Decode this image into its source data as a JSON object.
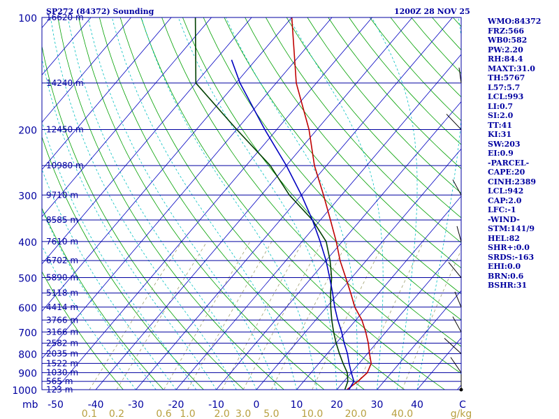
{
  "header": {
    "title": "SP272 (84372) Sounding",
    "time": "1200Z 28 NOV 25"
  },
  "chart_data": {
    "type": "skew-t log-p",
    "pressure_levels": [
      {
        "p": 100,
        "height": "16620 m"
      },
      {
        "p": 150,
        "height": "14240 m"
      },
      {
        "p": 200,
        "height": "12450 m"
      },
      {
        "p": 250,
        "height": "10980 m"
      },
      {
        "p": 300,
        "height": "9710 m"
      },
      {
        "p": 350,
        "height": "8585 m"
      },
      {
        "p": 400,
        "height": "7610 m"
      },
      {
        "p": 450,
        "height": "6702 m"
      },
      {
        "p": 500,
        "height": "5890 m"
      },
      {
        "p": 550,
        "height": "5118 m"
      },
      {
        "p": 600,
        "height": "4414 m"
      },
      {
        "p": 650,
        "height": "3766 m"
      },
      {
        "p": 700,
        "height": "3166 m"
      },
      {
        "p": 750,
        "height": "2582 m"
      },
      {
        "p": 800,
        "height": "2035 m"
      },
      {
        "p": 850,
        "height": "1522 m"
      },
      {
        "p": 900,
        "height": "1030 m"
      },
      {
        "p": 950,
        "height": "565 m"
      },
      {
        "p": 1000,
        "height": "123 m"
      }
    ],
    "pressure_axis_labels": [
      "100",
      "200",
      "300",
      "400",
      "500",
      "600",
      "700",
      "800",
      "900",
      "1000"
    ],
    "pressure_unit": "mb",
    "temperature_ticks": [
      "-50",
      "-40",
      "-30",
      "-20",
      "-10",
      "0",
      "10",
      "20",
      "30",
      "40"
    ],
    "temperature_unit": "C",
    "mixing_ratio_ticks": [
      "0.1",
      "0.2",
      "0.6",
      "1.0",
      "2.0",
      "3.0",
      "5.0",
      "10.0",
      "20.0",
      "40.0"
    ],
    "mixing_ratio_unit": "g/kg",
    "series": [
      {
        "name": "Temperature",
        "color": "#c00000",
        "points": [
          [
            1000,
            22.5
          ],
          [
            950,
            23.5
          ],
          [
            900,
            24
          ],
          [
            850,
            23
          ],
          [
            800,
            20.5
          ],
          [
            750,
            18
          ],
          [
            700,
            15
          ],
          [
            650,
            11.5
          ],
          [
            600,
            7
          ],
          [
            550,
            3
          ],
          [
            500,
            -1.5
          ],
          [
            450,
            -6.5
          ],
          [
            400,
            -11.5
          ],
          [
            350,
            -17.5
          ],
          [
            300,
            -24.5
          ],
          [
            250,
            -33
          ],
          [
            200,
            -42
          ],
          [
            150,
            -55
          ],
          [
            100,
            -70
          ]
        ]
      },
      {
        "name": "Dewpoint",
        "color": "#004000",
        "points": [
          [
            1000,
            22
          ],
          [
            950,
            21
          ],
          [
            900,
            19
          ],
          [
            850,
            16
          ],
          [
            800,
            13
          ],
          [
            750,
            10
          ],
          [
            700,
            7
          ],
          [
            650,
            4
          ],
          [
            600,
            1
          ],
          [
            550,
            -2
          ],
          [
            500,
            -5
          ],
          [
            450,
            -9
          ],
          [
            400,
            -14
          ],
          [
            350,
            -22
          ],
          [
            300,
            -33
          ],
          [
            250,
            -44
          ],
          [
            200,
            -60
          ],
          [
            150,
            -80
          ],
          [
            100,
            -94
          ]
        ]
      },
      {
        "name": "Parcel",
        "color": "#0000c0",
        "points": [
          [
            1000,
            23
          ],
          [
            950,
            22.5
          ],
          [
            900,
            20
          ],
          [
            850,
            17.5
          ],
          [
            800,
            15
          ],
          [
            750,
            12
          ],
          [
            700,
            9
          ],
          [
            650,
            5.5
          ],
          [
            600,
            2
          ],
          [
            550,
            -1.5
          ],
          [
            500,
            -5.5
          ],
          [
            450,
            -10
          ],
          [
            400,
            -15.5
          ],
          [
            350,
            -22
          ],
          [
            300,
            -30
          ],
          [
            250,
            -40
          ],
          [
            200,
            -53
          ],
          [
            150,
            -69
          ],
          [
            130,
            -76
          ]
        ]
      }
    ]
  },
  "indices": [
    "WMO:84372",
    "FRZ:566",
    "WB0:582",
    "PW:2.20",
    "RH:84.4",
    "MAXT:31.0",
    "TH:5767",
    "L57:5.7",
    "LCL:993",
    "LI:0.7",
    "SI:2.0",
    "TT:41",
    "KI:31",
    "SW:203",
    "EI:0.9",
    "-PARCEL-",
    "CAPE:20",
    "CINH:2389",
    "LCL:942",
    "CAP:2.0",
    "LFC:-1",
    "-WIND-",
    "STM:141/9",
    "HEL:82",
    "SHR+:0.0",
    "SRDS:-163",
    "EHI:0.0",
    "BRN:0.6",
    "BSHR:31"
  ],
  "colors": {
    "frame": "#0000a0",
    "isobar": "#0000a0",
    "isotherm": "#0000c0",
    "dry_adiabat": "#00a000",
    "moist_adiabat": "#00c0c0",
    "mixing_ratio": "#a0a070",
    "wind": "#000000",
    "tick_label": "#b8a040"
  }
}
